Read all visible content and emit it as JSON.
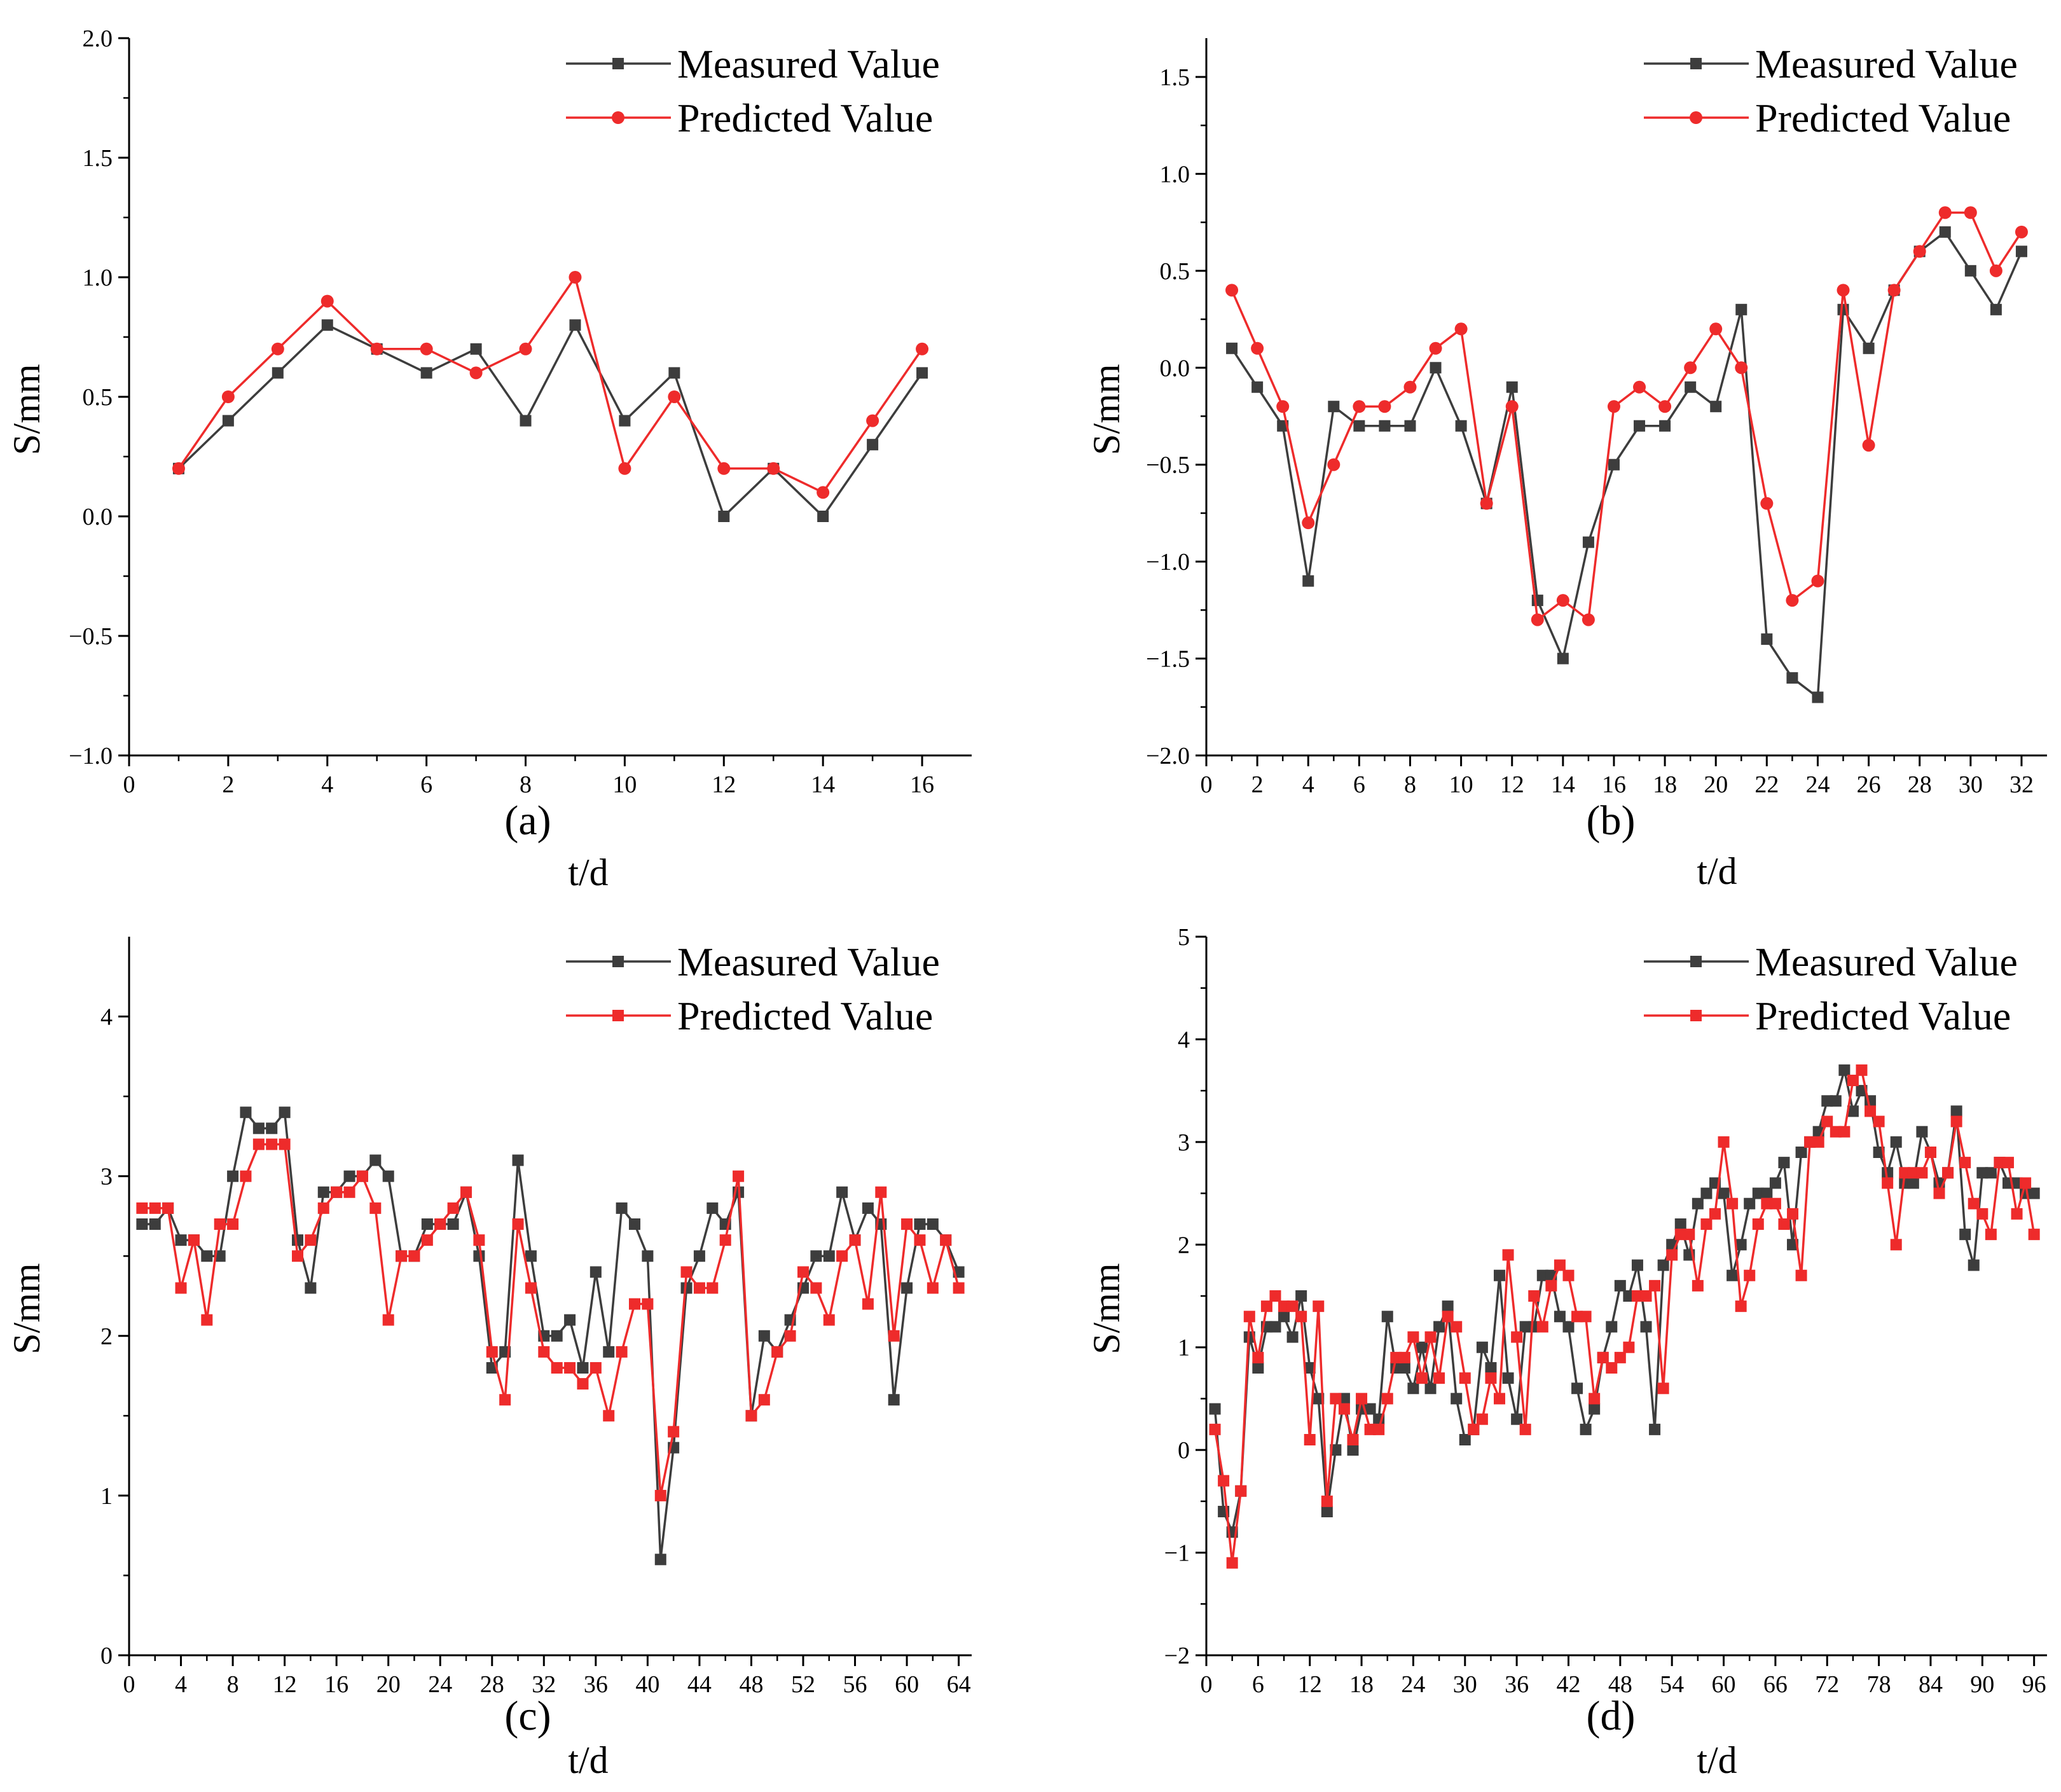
{
  "colors": {
    "measured": "#3d3d3d",
    "predicted": "#ee2b2b",
    "axis": "#000000"
  },
  "chart_data": [
    {
      "type": "line",
      "panel": "a",
      "caption": "(a)",
      "xlabel": "t/d",
      "ylabel": "S/mm",
      "xlim": [
        0,
        17
      ],
      "ylim": [
        -1.0,
        2.0
      ],
      "xticks": [
        0,
        2,
        4,
        6,
        8,
        10,
        12,
        14,
        16
      ],
      "yticks": [
        -1.0,
        -0.5,
        0.0,
        0.5,
        1.0,
        1.5,
        2.0
      ],
      "xtick_labels": [
        "0",
        "2",
        "4",
        "6",
        "8",
        "10",
        "12",
        "14",
        "16"
      ],
      "ytick_labels": [
        "−1.0",
        "−0.5",
        "0.0",
        "0.5",
        "1.0",
        "1.5",
        "2.0"
      ],
      "x": [
        1,
        2,
        3,
        4,
        5,
        6,
        7,
        8,
        9,
        10,
        11,
        12,
        13,
        14,
        15,
        16
      ],
      "series": [
        {
          "name": "Measured Value",
          "marker": "square",
          "values": [
            0.2,
            0.4,
            0.6,
            0.8,
            0.7,
            0.6,
            0.7,
            0.4,
            0.8,
            0.4,
            0.6,
            0.0,
            0.2,
            0.0,
            0.3,
            0.6
          ]
        },
        {
          "name": "Predicted Value",
          "marker": "circle",
          "values": [
            0.2,
            0.5,
            0.7,
            0.9,
            0.7,
            0.7,
            0.6,
            0.7,
            1.0,
            0.2,
            0.5,
            0.2,
            0.2,
            0.1,
            0.4,
            0.7
          ]
        }
      ],
      "legend": "top-right"
    },
    {
      "type": "line",
      "panel": "b",
      "caption": "(b)",
      "xlabel": "t/d",
      "ylabel": "S/mm",
      "xlim": [
        0,
        33
      ],
      "ylim": [
        -2.0,
        1.7
      ],
      "xticks": [
        0,
        2,
        4,
        6,
        8,
        10,
        12,
        14,
        16,
        18,
        20,
        22,
        24,
        26,
        28,
        30,
        32
      ],
      "yticks": [
        -2.0,
        -1.5,
        -1.0,
        -0.5,
        0.0,
        0.5,
        1.0,
        1.5
      ],
      "xtick_labels": [
        "0",
        "2",
        "4",
        "6",
        "8",
        "10",
        "12",
        "14",
        "16",
        "18",
        "20",
        "22",
        "24",
        "26",
        "28",
        "30",
        "32"
      ],
      "ytick_labels": [
        "−2.0",
        "−1.5",
        "−1.0",
        "−0.5",
        "0.0",
        "0.5",
        "1.0",
        "1.5"
      ],
      "x": [
        1,
        2,
        3,
        4,
        5,
        6,
        7,
        8,
        9,
        10,
        11,
        12,
        13,
        14,
        15,
        16,
        17,
        18,
        19,
        20,
        21,
        22,
        23,
        24,
        25,
        26,
        27,
        28,
        29,
        30,
        31,
        32
      ],
      "series": [
        {
          "name": "Measured Value",
          "marker": "square",
          "values": [
            0.1,
            -0.1,
            -0.3,
            -1.1,
            -0.2,
            -0.3,
            -0.3,
            -0.3,
            0.0,
            -0.3,
            -0.7,
            -0.1,
            -1.2,
            -1.5,
            -0.9,
            -0.5,
            -0.3,
            -0.3,
            -0.1,
            -0.2,
            0.3,
            -1.4,
            -1.6,
            -1.7,
            0.3,
            0.1,
            0.4,
            0.6,
            0.7,
            0.5,
            0.3,
            0.6
          ]
        },
        {
          "name": "Predicted Value",
          "marker": "circle",
          "values": [
            0.4,
            0.1,
            -0.2,
            -0.8,
            -0.5,
            -0.2,
            -0.2,
            -0.1,
            0.1,
            0.2,
            -0.7,
            -0.2,
            -1.3,
            -1.2,
            -1.3,
            -0.2,
            -0.1,
            -0.2,
            0.0,
            0.2,
            0.0,
            -0.7,
            -1.2,
            -1.1,
            0.4,
            -0.4,
            0.4,
            0.6,
            0.8,
            0.8,
            0.5,
            0.7
          ]
        }
      ],
      "legend": "top-right"
    },
    {
      "type": "line",
      "panel": "c",
      "caption": "(c)",
      "xlabel": "t/d",
      "ylabel": "S/mm",
      "xlim": [
        0,
        65
      ],
      "ylim": [
        0,
        4.5
      ],
      "xticks": [
        0,
        4,
        8,
        12,
        16,
        20,
        24,
        28,
        32,
        36,
        40,
        44,
        48,
        52,
        56,
        60,
        64
      ],
      "yticks": [
        0,
        1,
        2,
        3,
        4
      ],
      "xtick_labels": [
        "0",
        "4",
        "8",
        "12",
        "16",
        "20",
        "24",
        "28",
        "32",
        "36",
        "40",
        "44",
        "48",
        "52",
        "56",
        "60",
        "64"
      ],
      "ytick_labels": [
        "0",
        "1",
        "2",
        "3",
        "4"
      ],
      "x": [
        1,
        2,
        3,
        4,
        5,
        6,
        7,
        8,
        9,
        10,
        11,
        12,
        13,
        14,
        15,
        16,
        17,
        18,
        19,
        20,
        21,
        22,
        23,
        24,
        25,
        26,
        27,
        28,
        29,
        30,
        31,
        32,
        33,
        34,
        35,
        36,
        37,
        38,
        39,
        40,
        41,
        42,
        43,
        44,
        45,
        46,
        47,
        48,
        49,
        50,
        51,
        52,
        53,
        54,
        55,
        56,
        57,
        58,
        59,
        60,
        61,
        62,
        63,
        64
      ],
      "series": [
        {
          "name": "Measured Value",
          "marker": "square",
          "values": [
            2.7,
            2.7,
            2.8,
            2.6,
            2.6,
            2.5,
            2.5,
            3.0,
            3.4,
            3.3,
            3.3,
            3.4,
            2.6,
            2.3,
            2.9,
            2.9,
            3.0,
            3.0,
            3.1,
            3.0,
            2.5,
            2.5,
            2.7,
            2.7,
            2.7,
            2.9,
            2.5,
            1.8,
            1.9,
            3.1,
            2.5,
            2.0,
            2.0,
            2.1,
            1.8,
            2.4,
            1.9,
            2.8,
            2.7,
            2.5,
            0.6,
            1.3,
            2.3,
            2.5,
            2.8,
            2.7,
            2.9,
            1.5,
            2.0,
            1.9,
            2.1,
            2.3,
            2.5,
            2.5,
            2.9,
            2.6,
            2.8,
            2.7,
            1.6,
            2.3,
            2.7,
            2.7,
            2.6,
            2.4
          ]
        },
        {
          "name": "Predicted Value",
          "marker": "square",
          "values": [
            2.8,
            2.8,
            2.8,
            2.3,
            2.6,
            2.1,
            2.7,
            2.7,
            3.0,
            3.2,
            3.2,
            3.2,
            2.5,
            2.6,
            2.8,
            2.9,
            2.9,
            3.0,
            2.8,
            2.1,
            2.5,
            2.5,
            2.6,
            2.7,
            2.8,
            2.9,
            2.6,
            1.9,
            1.6,
            2.7,
            2.3,
            1.9,
            1.8,
            1.8,
            1.7,
            1.8,
            1.5,
            1.9,
            2.2,
            2.2,
            1.0,
            1.4,
            2.4,
            2.3,
            2.3,
            2.6,
            3.0,
            1.5,
            1.6,
            1.9,
            2.0,
            2.4,
            2.3,
            2.1,
            2.5,
            2.6,
            2.2,
            2.9,
            2.0,
            2.7,
            2.6,
            2.3,
            2.6,
            2.3
          ]
        }
      ],
      "legend": "top-right"
    },
    {
      "type": "line",
      "panel": "d",
      "caption": "(d)",
      "xlabel": "t/d",
      "ylabel": "S/mm",
      "xlim": [
        0,
        97.5
      ],
      "ylim": [
        -2,
        5
      ],
      "xticks": [
        0,
        6,
        12,
        18,
        24,
        30,
        36,
        42,
        48,
        54,
        60,
        66,
        72,
        78,
        84,
        90,
        96
      ],
      "yticks": [
        -2,
        -1,
        0,
        1,
        2,
        3,
        4,
        5
      ],
      "xtick_labels": [
        "0",
        "6",
        "12",
        "18",
        "24",
        "30",
        "36",
        "42",
        "48",
        "54",
        "60",
        "66",
        "72",
        "78",
        "84",
        "90",
        "96"
      ],
      "ytick_labels": [
        "−2",
        "−1",
        "0",
        "1",
        "2",
        "3",
        "4",
        "5"
      ],
      "x": [
        1,
        2,
        3,
        4,
        5,
        6,
        7,
        8,
        9,
        10,
        11,
        12,
        13,
        14,
        15,
        16,
        17,
        18,
        19,
        20,
        21,
        22,
        23,
        24,
        25,
        26,
        27,
        28,
        29,
        30,
        31,
        32,
        33,
        34,
        35,
        36,
        37,
        38,
        39,
        40,
        41,
        42,
        43,
        44,
        45,
        46,
        47,
        48,
        49,
        50,
        51,
        52,
        53,
        54,
        55,
        56,
        57,
        58,
        59,
        60,
        61,
        62,
        63,
        64,
        65,
        66,
        67,
        68,
        69,
        70,
        71,
        72,
        73,
        74,
        75,
        76,
        77,
        78,
        79,
        80,
        81,
        82,
        83,
        84,
        85,
        86,
        87,
        88,
        89,
        90,
        91,
        92,
        93,
        94,
        95,
        96
      ],
      "series": [
        {
          "name": "Measured Value",
          "marker": "square",
          "values": [
            0.4,
            -0.6,
            -0.8,
            -0.4,
            1.1,
            0.8,
            1.2,
            1.2,
            1.3,
            1.1,
            1.5,
            0.8,
            0.5,
            -0.6,
            0.0,
            0.5,
            0.0,
            0.4,
            0.4,
            0.3,
            1.3,
            0.8,
            0.8,
            0.6,
            1.0,
            0.6,
            1.2,
            1.4,
            0.5,
            0.1,
            0.2,
            1.0,
            0.8,
            1.7,
            0.7,
            0.3,
            1.2,
            1.2,
            1.7,
            1.7,
            1.3,
            1.2,
            0.6,
            0.2,
            0.4,
            0.9,
            1.2,
            1.6,
            1.5,
            1.8,
            1.2,
            0.2,
            1.8,
            2.0,
            2.2,
            1.9,
            2.4,
            2.5,
            2.6,
            2.5,
            1.7,
            2.0,
            2.4,
            2.5,
            2.5,
            2.6,
            2.8,
            2.0,
            2.9,
            3.0,
            3.1,
            3.4,
            3.4,
            3.7,
            3.3,
            3.5,
            3.4,
            2.9,
            2.7,
            3.0,
            2.6,
            2.6,
            3.1,
            2.9,
            2.6,
            2.7,
            3.3,
            2.1,
            1.8,
            2.7,
            2.7,
            2.8,
            2.6,
            2.6,
            2.5,
            2.5
          ]
        },
        {
          "name": "Predicted Value",
          "marker": "square",
          "values": [
            0.2,
            -0.3,
            -1.1,
            -0.4,
            1.3,
            0.9,
            1.4,
            1.5,
            1.4,
            1.4,
            1.3,
            0.1,
            1.4,
            -0.5,
            0.5,
            0.4,
            0.1,
            0.5,
            0.2,
            0.2,
            0.5,
            0.9,
            0.9,
            1.1,
            0.7,
            1.1,
            0.7,
            1.3,
            1.2,
            0.7,
            0.2,
            0.3,
            0.7,
            0.5,
            1.9,
            1.1,
            0.2,
            1.5,
            1.2,
            1.6,
            1.8,
            1.7,
            1.3,
            1.3,
            0.5,
            0.9,
            0.8,
            0.9,
            1.0,
            1.5,
            1.5,
            1.6,
            0.6,
            1.9,
            2.1,
            2.1,
            1.6,
            2.2,
            2.3,
            3.0,
            2.4,
            1.4,
            1.7,
            2.2,
            2.4,
            2.4,
            2.2,
            2.3,
            1.7,
            3.0,
            3.0,
            3.2,
            3.1,
            3.1,
            3.6,
            3.7,
            3.3,
            3.2,
            2.6,
            2.0,
            2.7,
            2.7,
            2.7,
            2.9,
            2.5,
            2.7,
            3.2,
            2.8,
            2.4,
            2.3,
            2.1,
            2.8,
            2.8,
            2.3,
            2.6,
            2.1
          ]
        }
      ],
      "legend": "top-right"
    }
  ]
}
